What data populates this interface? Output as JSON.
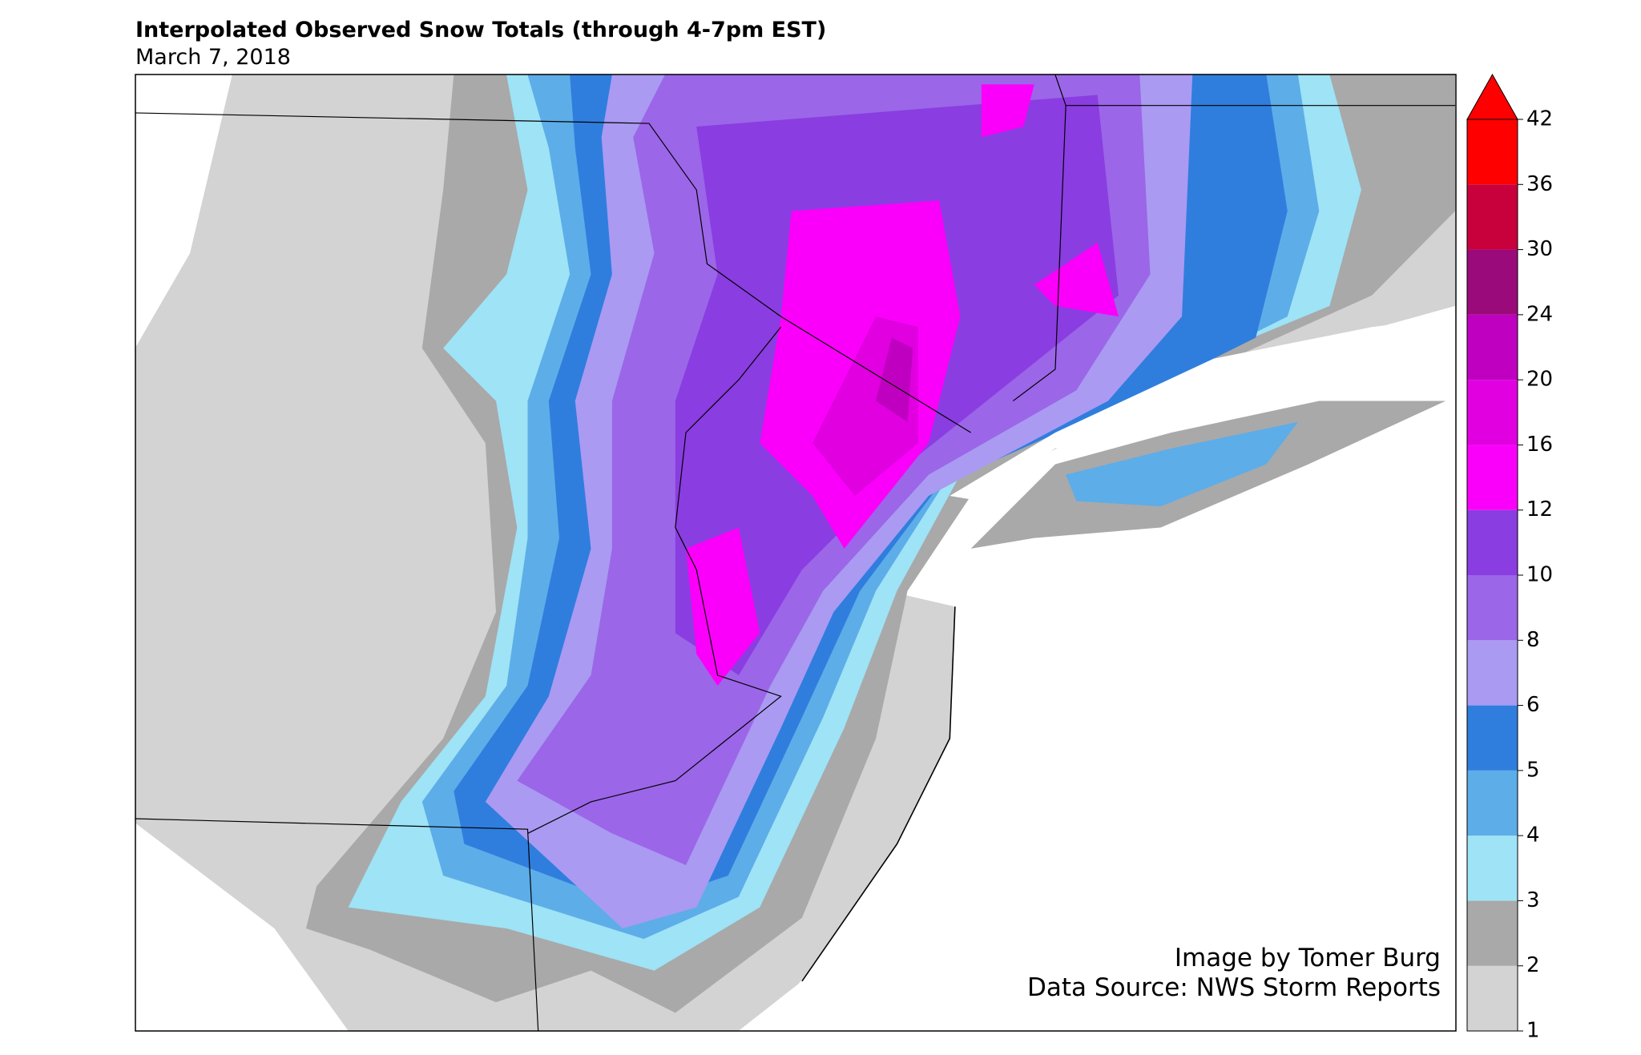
{
  "title": "Interpolated Observed Snow Totals (through 4-7pm EST)",
  "subtitle": "March 7, 2018",
  "credits": [
    "Image by Tomer Burg",
    "Data Source: NWS Storm Reports"
  ],
  "colorbar": {
    "levels": [
      1,
      2,
      3,
      4,
      5,
      6,
      8,
      10,
      12,
      16,
      20,
      24,
      30,
      36,
      42
    ],
    "colors": [
      "#d3d3d3",
      "#a9a9a9",
      "#9ee3f6",
      "#5dade8",
      "#2f7ede",
      "#aa9af2",
      "#9b66e8",
      "#8a3de0",
      "#fa00fa",
      "#e000e0",
      "#c000c0",
      "#9b0a7a",
      "#c8003c",
      "#ff0000"
    ],
    "extend_color": "#ff0000"
  }
}
